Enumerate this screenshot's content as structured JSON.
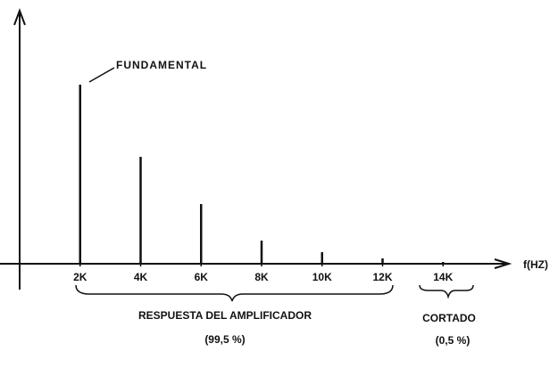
{
  "chart_data": {
    "type": "stem",
    "x": [
      2000,
      4000,
      6000,
      8000,
      10000,
      12000,
      14000
    ],
    "values": [
      201,
      120,
      67,
      26,
      13,
      6,
      2
    ],
    "color": "#111111",
    "xlim": [
      0,
      16000
    ],
    "ylim": [
      0,
      281
    ],
    "xticks": [
      {
        "value": 2000,
        "label": "2K"
      },
      {
        "value": 4000,
        "label": "4K"
      },
      {
        "value": 6000,
        "label": "6K"
      },
      {
        "value": 8000,
        "label": "8K"
      },
      {
        "value": 10000,
        "label": "10K"
      },
      {
        "value": 12000,
        "label": "12K"
      },
      {
        "value": 14000,
        "label": "14K"
      }
    ],
    "x_label": "f(HZ)",
    "annotations": {
      "fundamental": "FUNDAMENTAL",
      "response": "RESPUESTA DEL AMPLIFICADOR",
      "response_pct": "(99,5 %)",
      "cut": "CORTADO",
      "cut_pct": "(0,5 %)"
    }
  }
}
